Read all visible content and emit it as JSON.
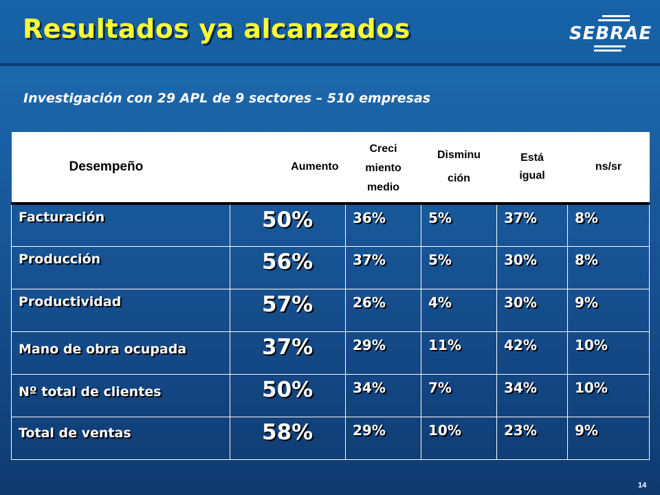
{
  "slide": {
    "title": "Resultados ya alcanzados",
    "subtitle": "Investigación con 29 APL de 9 sectores – 510 empresas",
    "logo_text": "SEBRAE",
    "page_number": "14"
  },
  "table": {
    "headers": {
      "desempeno": "Desempeño",
      "aumento": "Aumento",
      "crecimiento_medio": [
        "Creci",
        "miento",
        "medio"
      ],
      "disminucion": [
        "Disminu",
        "ción"
      ],
      "esta_igual": [
        "Está",
        "igual"
      ],
      "nssr": "ns/sr"
    },
    "rows": [
      {
        "label": "Facturación",
        "aumento": "50%",
        "crecimiento": "36%",
        "disminucion": "5%",
        "igual": "37%",
        "nssr": "8%"
      },
      {
        "label": "Producción",
        "aumento": "56%",
        "crecimiento": "37%",
        "disminucion": "5%",
        "igual": "30%",
        "nssr": "8%"
      },
      {
        "label": "Productividad",
        "aumento": "57%",
        "crecimiento": "26%",
        "disminucion": "4%",
        "igual": "30%",
        "nssr": "9%"
      },
      {
        "label": "Mano de obra ocupada",
        "aumento": "37%",
        "crecimiento": "29%",
        "disminucion": "11%",
        "igual": "42%",
        "nssr": "10%"
      },
      {
        "label": "Nº total de clientes",
        "aumento": "50%",
        "crecimiento": "34%",
        "disminucion": "7%",
        "igual": "34%",
        "nssr": "10%"
      },
      {
        "label": "Total de ventas",
        "aumento": "58%",
        "crecimiento": "29%",
        "disminucion": "10%",
        "igual": "23%",
        "nssr": "9%"
      }
    ]
  },
  "colors": {
    "title": "#ffff33",
    "background_top": "#1f6eb3",
    "background_bottom": "#0f3a70",
    "header_bg": "#ffffff"
  }
}
